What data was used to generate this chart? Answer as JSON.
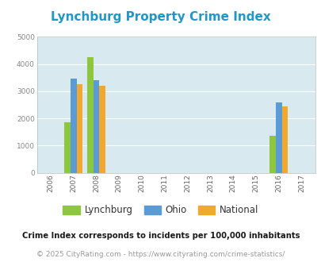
{
  "title": "Lynchburg Property Crime Index",
  "title_color": "#2196C8",
  "years": [
    2006,
    2007,
    2008,
    2009,
    2010,
    2011,
    2012,
    2013,
    2014,
    2015,
    2016,
    2017
  ],
  "data": {
    "2007": {
      "Lynchburg": 1850,
      "Ohio": 3450,
      "National": 3250
    },
    "2008": {
      "Lynchburg": 4250,
      "Ohio": 3400,
      "National": 3200
    },
    "2016": {
      "Lynchburg": 1375,
      "Ohio": 2575,
      "National": 2450
    }
  },
  "colors": {
    "Lynchburg": "#8DC63F",
    "Ohio": "#5B9BD5",
    "National": "#F0A830"
  },
  "ylim": [
    0,
    5000
  ],
  "yticks": [
    0,
    1000,
    2000,
    3000,
    4000,
    5000
  ],
  "plot_bg_color": "#D8EAF0",
  "grid_color": "#FFFFFF",
  "series_keys": [
    "Lynchburg",
    "Ohio",
    "National"
  ],
  "bar_years": [
    2007,
    2008,
    2016
  ],
  "footnote1": "Crime Index corresponds to incidents per 100,000 inhabitants",
  "footnote2": "© 2025 CityRating.com - https://www.cityrating.com/crime-statistics/",
  "bar_width": 0.27
}
